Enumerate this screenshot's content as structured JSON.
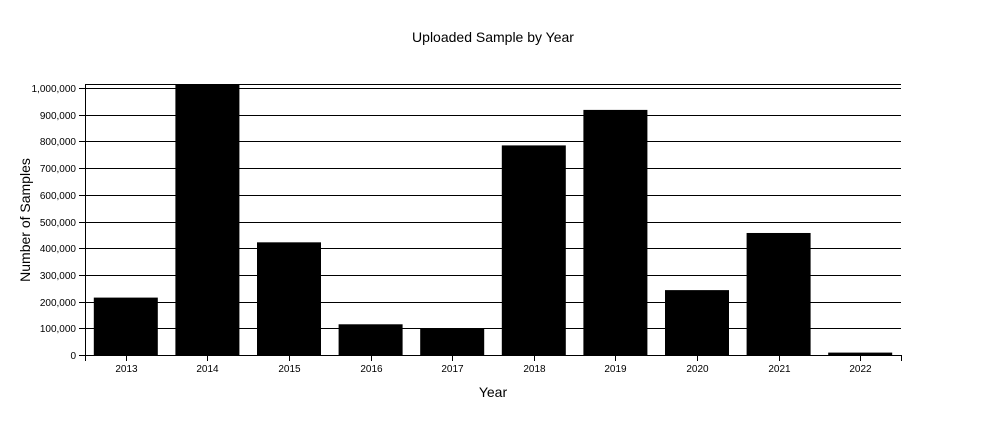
{
  "chart_data": {
    "type": "bar",
    "title": "Uploaded Sample by Year",
    "xlabel": "Year",
    "ylabel": "Number of Samples",
    "categories": [
      "2013",
      "2014",
      "2015",
      "2016",
      "2017",
      "2018",
      "2019",
      "2020",
      "2021",
      "2022"
    ],
    "values": [
      215000,
      1015000,
      422000,
      115000,
      100000,
      785000,
      918000,
      243000,
      457000,
      9000
    ],
    "ylim": [
      0,
      1015000
    ],
    "yticks": [
      0,
      100000,
      200000,
      300000,
      400000,
      500000,
      600000,
      700000,
      800000,
      900000,
      1000000
    ],
    "ytick_labels": [
      "0",
      "100,000",
      "200,000",
      "300,000",
      "400,000",
      "500,000",
      "600,000",
      "700,000",
      "800,000",
      "900,000",
      "1,000,000"
    ],
    "grid": true,
    "colors": {
      "bar": "#000000",
      "grid": "#000000",
      "background": "#ffffff"
    }
  }
}
